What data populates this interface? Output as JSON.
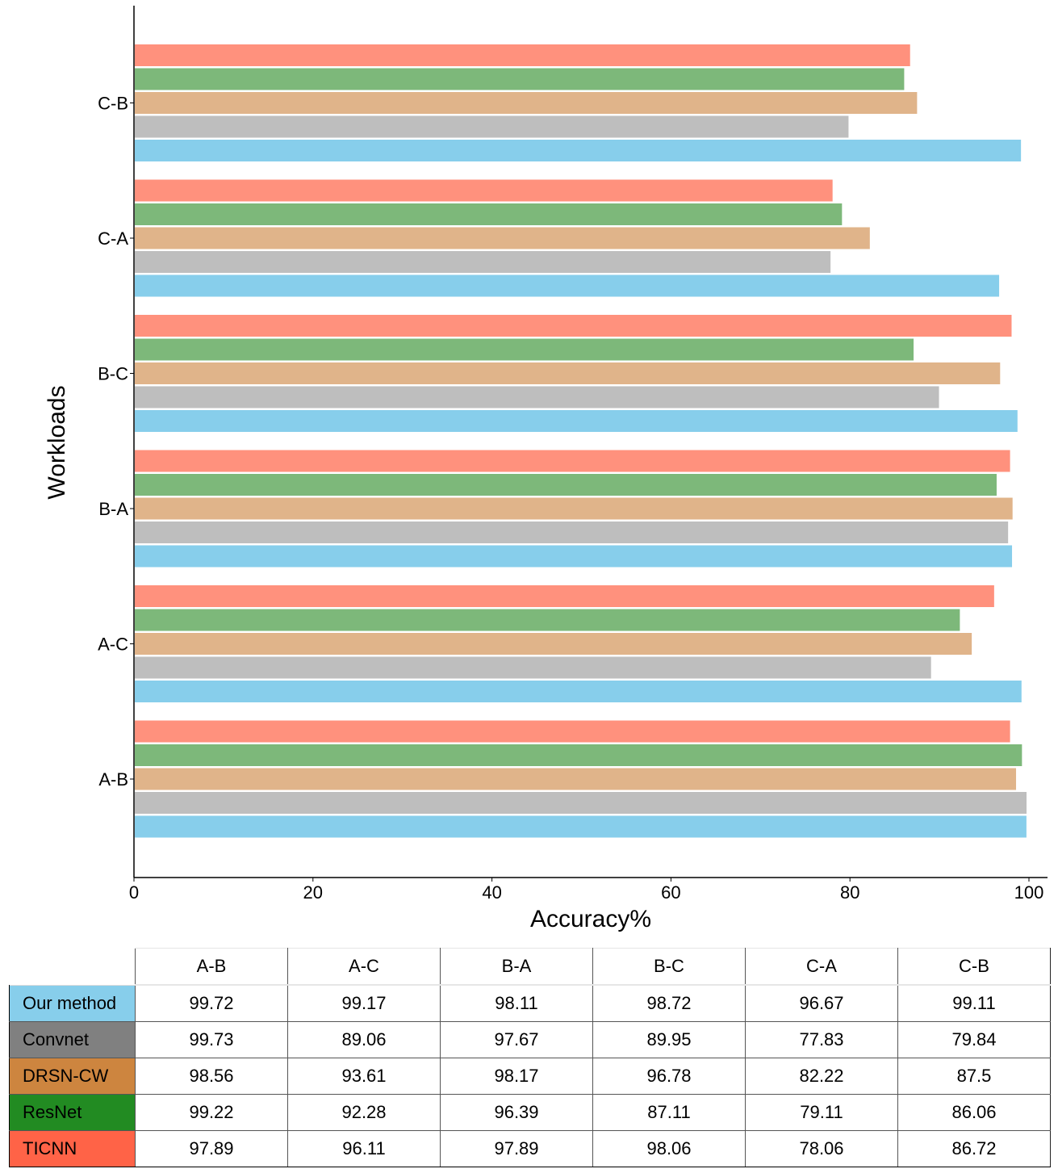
{
  "chart_data": {
    "type": "bar",
    "orientation": "horizontal",
    "title": "",
    "xlabel": "Accuracy%",
    "ylabel": "Workloads",
    "xlim": [
      0,
      100
    ],
    "xticks": [
      "0",
      "20",
      "40",
      "60",
      "80",
      "100"
    ],
    "grid": false,
    "legend": "table-below",
    "categories": [
      "A-B",
      "A-C",
      "B-A",
      "B-C",
      "C-A",
      "C-B"
    ],
    "series": [
      {
        "name": "Our method",
        "color": "#87CEEB",
        "table_color": "#87CEEB",
        "values": [
          99.72,
          99.17,
          98.11,
          98.72,
          96.67,
          99.11
        ]
      },
      {
        "name": "Convnet",
        "color": "#BEBEBE",
        "table_color": "#808080",
        "values": [
          99.73,
          89.06,
          97.67,
          89.95,
          77.83,
          79.84
        ]
      },
      {
        "name": "DRSN-CW",
        "color": "#E0B48A",
        "table_color": "#CD853F",
        "values": [
          98.56,
          93.61,
          98.17,
          96.78,
          82.22,
          87.5
        ]
      },
      {
        "name": "ResNet",
        "color": "#7DB87A",
        "table_color": "#228B22",
        "values": [
          99.22,
          92.28,
          96.39,
          87.11,
          79.11,
          86.06
        ]
      },
      {
        "name": "TICNN",
        "color": "#FF917D",
        "table_color": "#FF6347",
        "values": [
          97.89,
          96.11,
          97.89,
          98.06,
          78.06,
          86.72
        ]
      }
    ]
  },
  "table": {
    "columns": [
      "A-B",
      "A-C",
      "B-A",
      "B-C",
      "C-A",
      "C-B"
    ],
    "rows": [
      {
        "label": "Our method",
        "values": [
          "99.72",
          "99.17",
          "98.11",
          "98.72",
          "96.67",
          "99.11"
        ]
      },
      {
        "label": "Convnet",
        "values": [
          "99.73",
          "89.06",
          "97.67",
          "89.95",
          "77.83",
          "79.84"
        ]
      },
      {
        "label": "DRSN-CW",
        "values": [
          "98.56",
          "93.61",
          "98.17",
          "96.78",
          "82.22",
          "87.5"
        ]
      },
      {
        "label": "ResNet",
        "values": [
          "99.22",
          "92.28",
          "96.39",
          "87.11",
          "79.11",
          "86.06"
        ]
      },
      {
        "label": "TICNN",
        "values": [
          "97.89",
          "96.11",
          "97.89",
          "98.06",
          "78.06",
          "86.72"
        ]
      }
    ]
  }
}
